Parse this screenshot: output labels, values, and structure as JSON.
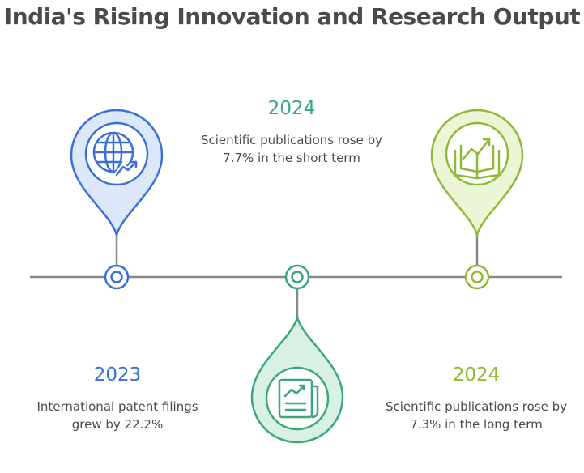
{
  "title": "India's Rising Innovation and Research Output",
  "colors": {
    "blue": "#3a6fd8",
    "green": "#3aa77a",
    "lime": "#8db934",
    "line": "#888888",
    "text": "#4a4a4a"
  },
  "events": [
    {
      "year": "2023",
      "description": "International patent filings grew by 22.2%",
      "color": "#3a6fd8",
      "icon": "globe-growth-icon"
    },
    {
      "year": "2024",
      "description": "Scientific publications rose by 7.7% in the short term",
      "color": "#3aa77a",
      "icon": "document-chart-icon"
    },
    {
      "year": "2024",
      "description": "Scientific publications rose by 7.3% in the long term",
      "color": "#8db934",
      "icon": "book-growth-icon"
    }
  ]
}
